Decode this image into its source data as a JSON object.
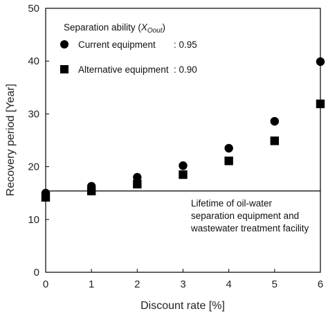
{
  "chart_data": {
    "type": "scatter",
    "xlabel": "Discount rate [%]",
    "ylabel": "Recovery period [Year]",
    "xlim": [
      0,
      6
    ],
    "ylim": [
      0,
      50
    ],
    "xticks": [
      "0",
      "1",
      "2",
      "3",
      "4",
      "5",
      "6"
    ],
    "yticks": [
      "0",
      "10",
      "20",
      "30",
      "40",
      "50"
    ],
    "grid": false,
    "legend": {
      "placement": "top-left",
      "title_prefix": "Separation ability (",
      "title_var": "X",
      "title_sub": "Oout",
      "title_suffix": ")"
    },
    "series": [
      {
        "name": "Current equipment",
        "value_label": ": 0.95",
        "marker": "circle",
        "color": "#000000",
        "x": [
          0,
          1,
          2,
          3,
          4,
          5,
          6
        ],
        "y": [
          15.0,
          16.3,
          18.0,
          20.2,
          23.5,
          28.6,
          39.9
        ]
      },
      {
        "name": "Alternative equipment",
        "value_label": ": 0.90",
        "marker": "square",
        "color": "#000000",
        "x": [
          0,
          1,
          2,
          3,
          4,
          5,
          6
        ],
        "y": [
          14.2,
          15.4,
          16.7,
          18.5,
          21.1,
          24.9,
          31.9
        ]
      }
    ],
    "reference_line": {
      "y": 15.4,
      "label_lines": [
        "Lifetime of oil-water",
        "separation equipment and",
        "wastewater treatment facility"
      ]
    }
  }
}
